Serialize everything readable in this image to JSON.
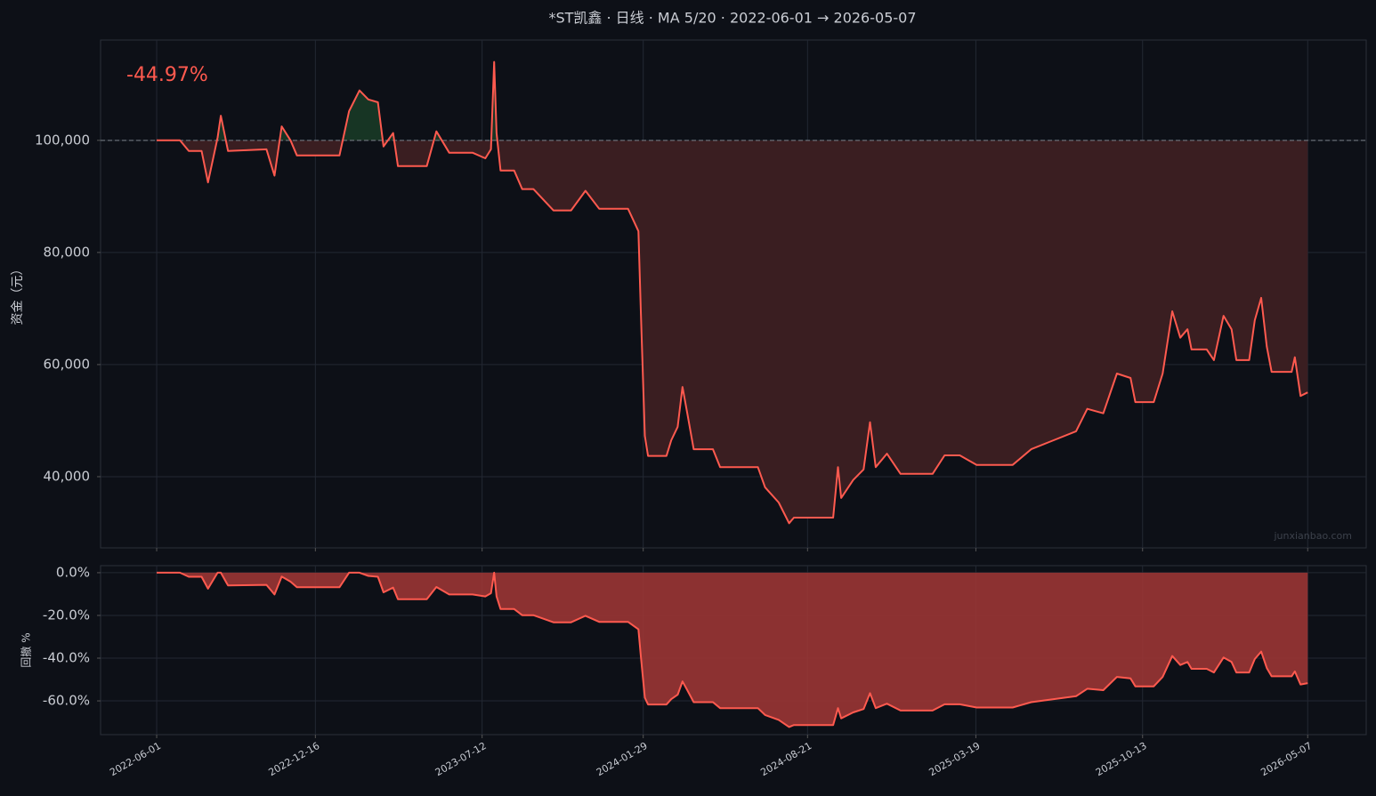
{
  "chart_data": {
    "type": "line",
    "title": "*ST凯鑫 · 日线 · MA 5/20 · 2022-06-01 → 2026-05-07",
    "x": [
      "2022-06-01",
      "2022-06-30",
      "2022-07-11",
      "2022-07-27",
      "2022-08-04",
      "2022-08-16",
      "2022-08-20",
      "2022-08-29",
      "2022-10-16",
      "2022-10-26",
      "2022-11-04",
      "2022-11-15",
      "2022-11-23",
      "2023-01-15",
      "2023-01-27",
      "2023-02-09",
      "2023-02-20",
      "2023-03-04",
      "2023-03-11",
      "2023-03-23",
      "2023-03-29",
      "2023-05-04",
      "2023-05-16",
      "2023-06-01",
      "2023-06-30",
      "2023-07-16",
      "2023-07-23",
      "2023-07-27",
      "2023-07-30",
      "2023-08-04",
      "2023-08-21",
      "2023-08-31",
      "2023-09-14",
      "2023-10-09",
      "2023-10-31",
      "2023-11-18",
      "2023-12-05",
      "2024-01-10",
      "2024-01-23",
      "2024-01-26",
      "2024-01-31",
      "2024-02-04",
      "2024-02-27",
      "2024-03-04",
      "2024-03-12",
      "2024-03-18",
      "2024-03-24",
      "2024-04-01",
      "2024-04-25",
      "2024-05-04",
      "2024-06-20",
      "2024-06-29",
      "2024-07-16",
      "2024-07-29",
      "2024-08-04",
      "2024-09-22",
      "2024-09-28",
      "2024-10-02",
      "2024-10-17",
      "2024-10-30",
      "2024-11-07",
      "2024-11-14",
      "2024-11-28",
      "2024-12-15",
      "2025-01-24",
      "2025-02-08",
      "2025-02-27",
      "2025-03-20",
      "2025-05-04",
      "2025-05-27",
      "2025-06-24",
      "2025-07-22",
      "2025-08-05",
      "2025-08-25",
      "2025-09-11",
      "2025-09-28",
      "2025-10-04",
      "2025-10-27",
      "2025-11-07",
      "2025-11-19",
      "2025-11-29",
      "2025-12-08",
      "2025-12-13",
      "2026-01-01",
      "2026-01-10",
      "2026-01-22",
      "2026-02-01",
      "2026-02-07",
      "2026-02-23",
      "2026-03-02",
      "2026-03-10",
      "2026-03-17",
      "2026-03-23",
      "2026-04-17",
      "2026-04-21",
      "2026-04-28",
      "2026-05-07"
    ],
    "xlim": [
      "2022-03-23",
      "2026-07-19"
    ],
    "xticks": [
      "2022-06-01",
      "2022-12-16",
      "2023-07-12",
      "2024-01-29",
      "2024-08-21",
      "2025-03-19",
      "2025-10-13",
      "2026-05-07"
    ],
    "grid": true,
    "panels": [
      {
        "ylabel": "资金（元）",
        "annotation": "-44.97%",
        "annotation_color": "#ff5a4f",
        "watermark": "junxianbao.com",
        "baseline": 100000,
        "fill_colors": {
          "above": "#173524",
          "below": "#3a1e21"
        },
        "ylim": [
          27300,
          117900
        ],
        "yticks": [
          {
            "value": 40000,
            "label": "40,000"
          },
          {
            "value": 60000,
            "label": "60,000"
          },
          {
            "value": 80000,
            "label": "80,000"
          },
          {
            "value": 100000,
            "label": "100,000"
          }
        ],
        "series": [
          {
            "color": "#ff5a4f",
            "values": [
              100000,
              100000,
              98100,
              98100,
              92500,
              100500,
              104400,
              98100,
              98400,
              93700,
              102500,
              100000,
              97300,
              97300,
              105200,
              108900,
              107300,
              106800,
              98900,
              101300,
              95400,
              95400,
              101600,
              97800,
              97800,
              96800,
              98400,
              114000,
              101300,
              94600,
              94600,
              91300,
              91300,
              87500,
              87500,
              91000,
              87800,
              87800,
              83800,
              69500,
              47300,
              43700,
              43700,
              46500,
              48900,
              56000,
              51300,
              44900,
              44900,
              41700,
              41700,
              38100,
              35400,
              31700,
              32700,
              32700,
              41700,
              36200,
              39400,
              41300,
              49700,
              41700,
              44100,
              40500,
              40500,
              43800,
              43800,
              42100,
              42100,
              44900,
              46500,
              48100,
              52100,
              51300,
              58400,
              57600,
              53300,
              53300,
              58400,
              69500,
              64800,
              66300,
              62700,
              62700,
              60800,
              68700,
              66300,
              60800,
              60800,
              67900,
              71900,
              63200,
              58700,
              58700,
              61300,
              54400,
              55030
            ]
          }
        ]
      },
      {
        "ylabel": "回撤 %",
        "fill_color": "#9a3534",
        "ylim": [
          -75.8,
          3.3
        ],
        "yticks": [
          {
            "value": -60,
            "label": "-60.0%"
          },
          {
            "value": -40,
            "label": "-40.0%"
          },
          {
            "value": -20,
            "label": "-20.0%"
          },
          {
            "value": 0,
            "label": "0.0%"
          }
        ],
        "series": [
          {
            "color": "#ff5a4f",
            "values": [
              0,
              0,
              -1.9,
              -1.9,
              -7.5,
              0,
              0,
              -6.0,
              -5.7,
              -10.2,
              -1.8,
              -4.2,
              -6.8,
              -6.8,
              0,
              0,
              -1.5,
              -1.9,
              -9.2,
              -7.0,
              -12.4,
              -12.4,
              -6.7,
              -10.2,
              -10.2,
              -11.1,
              -9.6,
              0,
              -11.1,
              -17.0,
              -17.0,
              -19.9,
              -19.9,
              -23.2,
              -23.2,
              -20.2,
              -23.0,
              -23.0,
              -26.5,
              -39.0,
              -58.5,
              -61.7,
              -61.7,
              -59.2,
              -57.1,
              -50.9,
              -55.0,
              -60.6,
              -60.6,
              -63.4,
              -63.4,
              -66.6,
              -68.9,
              -72.2,
              -71.3,
              -71.3,
              -63.4,
              -68.2,
              -65.4,
              -63.8,
              -56.4,
              -63.4,
              -61.3,
              -64.5,
              -64.5,
              -61.6,
              -61.6,
              -63.1,
              -63.1,
              -60.6,
              -59.2,
              -57.8,
              -54.3,
              -55.0,
              -48.8,
              -49.5,
              -53.2,
              -53.2,
              -48.8,
              -39.0,
              -43.2,
              -41.8,
              -45.0,
              -45.0,
              -46.7,
              -39.7,
              -41.8,
              -46.7,
              -46.7,
              -40.4,
              -36.9,
              -44.6,
              -48.5,
              -48.5,
              -46.2,
              -52.3,
              -51.7
            ]
          }
        ]
      }
    ]
  }
}
